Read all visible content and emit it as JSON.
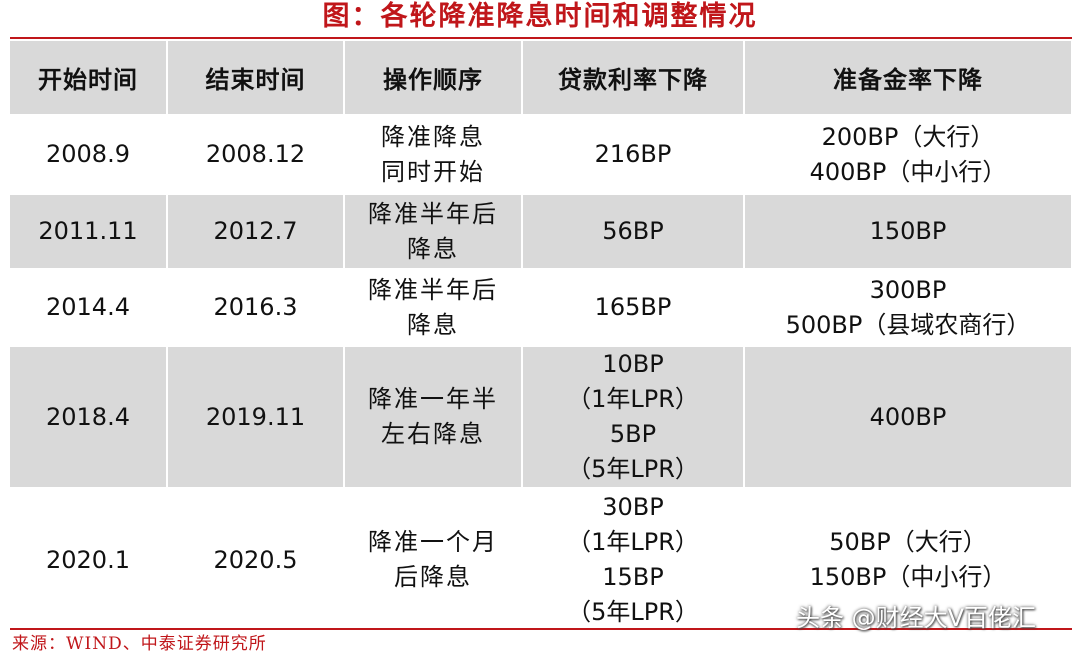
{
  "title": "图：各轮降准降息时间和调整情况",
  "colors": {
    "accent": "#c0161a",
    "header_bg": "#d9d9d9",
    "row_white": "#ffffff",
    "row_gray": "#d9d9d9"
  },
  "headers": [
    "开始时间",
    "结束时间",
    "操作顺序",
    "贷款利率下降",
    "准备金率下降"
  ],
  "rows": [
    {
      "start": "2008.9",
      "end": "2008.12",
      "order": [
        "降准降息",
        "同时开始"
      ],
      "loan": [
        "216BP"
      ],
      "reserve": [
        "200BP（大行）",
        "400BP（中小行）"
      ]
    },
    {
      "start": "2011.11",
      "end": "2012.7",
      "order": [
        "降准半年后",
        "降息"
      ],
      "loan": [
        "56BP"
      ],
      "reserve": [
        "150BP"
      ]
    },
    {
      "start": "2014.4",
      "end": "2016.3",
      "order": [
        "降准半年后",
        "降息"
      ],
      "loan": [
        "165BP"
      ],
      "reserve": [
        "300BP",
        "500BP（县域农商行）"
      ]
    },
    {
      "start": "2018.4",
      "end": "2019.11",
      "order": [
        "降准一年半",
        "左右降息"
      ],
      "loan": [
        "10BP",
        "（1年LPR）",
        "5BP",
        "（5年LPR）"
      ],
      "reserve": [
        "400BP"
      ]
    },
    {
      "start": "2020.1",
      "end": "2020.5",
      "order": [
        "降准一个月",
        "后降息"
      ],
      "loan": [
        "30BP",
        "（1年LPR）",
        "15BP",
        "（5年LPR）"
      ],
      "reserve": [
        "50BP（大行）",
        "150BP（中小行）"
      ]
    }
  ],
  "source": "来源：WIND、中泰证券研究所",
  "watermark": "头条 @财经大V百佬汇"
}
